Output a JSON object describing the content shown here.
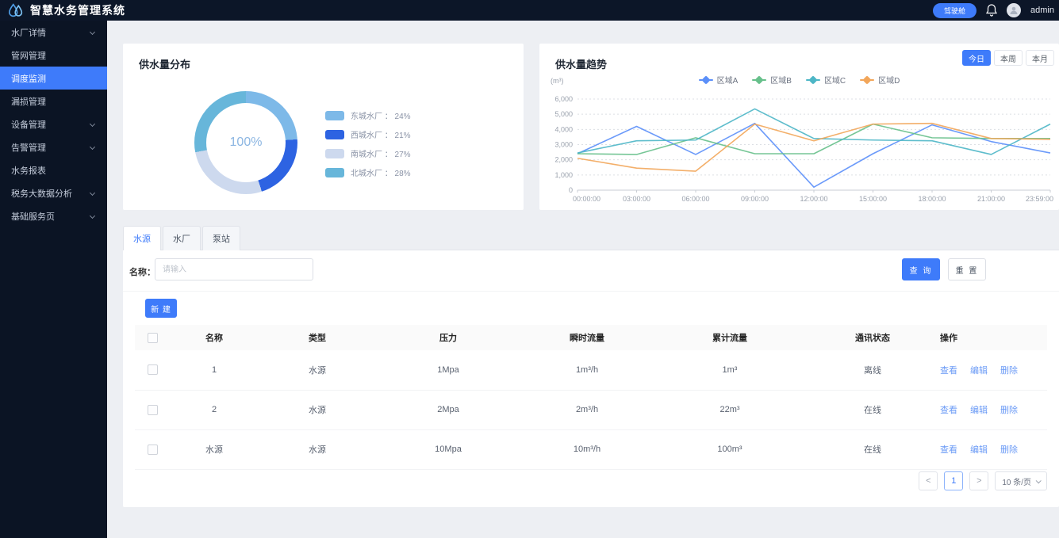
{
  "header": {
    "app_title": "智慧水务管理系统",
    "cockpit_button": "驾驶舱",
    "username": "admin"
  },
  "sidebar": {
    "items": [
      {
        "label": "水厂详情",
        "expandable": true,
        "active": false
      },
      {
        "label": "管网管理",
        "expandable": false,
        "active": false
      },
      {
        "label": "调度监测",
        "expandable": false,
        "active": true
      },
      {
        "label": "漏损管理",
        "expandable": false,
        "active": false
      },
      {
        "label": "设备管理",
        "expandable": true,
        "active": false
      },
      {
        "label": "告警管理",
        "expandable": true,
        "active": false
      },
      {
        "label": "水务报表",
        "expandable": false,
        "active": false
      },
      {
        "label": "税务大数据分析",
        "expandable": true,
        "active": false
      },
      {
        "label": "基础服务页",
        "expandable": true,
        "active": false
      }
    ]
  },
  "chart_data": [
    {
      "type": "pie",
      "title": "供水量分布",
      "center_label": "100%",
      "slices": [
        {
          "label": "东城水厂",
          "value": 24,
          "color": "#7db9e8"
        },
        {
          "label": "西城水厂",
          "value": 21,
          "color": "#2d63e2"
        },
        {
          "label": "南城水厂",
          "value": 27,
          "color": "#cdd9ee"
        },
        {
          "label": "北城水厂",
          "value": 28,
          "color": "#67b6da"
        }
      ],
      "legend_separator": " ： ",
      "legend_suffix": "%"
    },
    {
      "type": "line",
      "title": "供水量趋势",
      "ylabel": "(m³)",
      "ylim": [
        0,
        6000
      ],
      "y_ticks": [
        "6,000",
        "5,000",
        "4,000",
        "3,000",
        "2,000",
        "1,000",
        "0"
      ],
      "x": [
        "00:00:00",
        "03:00:00",
        "06:00:00",
        "09:00:00",
        "12:00:00",
        "15:00:00",
        "18:00:00",
        "21:00:00",
        "23:59:00"
      ],
      "series": [
        {
          "name": "区域A",
          "color": "#5b8ff9",
          "values": [
            2400,
            4200,
            2350,
            4400,
            200,
            2400,
            4300,
            3200,
            2450
          ]
        },
        {
          "name": "区域B",
          "color": "#67c08b",
          "values": [
            2400,
            2350,
            3450,
            2400,
            2400,
            4350,
            3450,
            3400,
            3400
          ]
        },
        {
          "name": "区域C",
          "color": "#4db6c6",
          "values": [
            2450,
            3250,
            3300,
            5350,
            3400,
            3300,
            3250,
            2350,
            4350
          ]
        },
        {
          "name": "区域D",
          "color": "#f2a65a",
          "values": [
            2100,
            1450,
            1250,
            4350,
            3250,
            4350,
            4400,
            3400,
            3350
          ]
        }
      ],
      "legend_position": "top",
      "grid": true,
      "period_buttons": [
        {
          "label": "今日",
          "active": true
        },
        {
          "label": "本周",
          "active": false
        },
        {
          "label": "本月",
          "active": false
        }
      ]
    }
  ],
  "panel": {
    "tabs": [
      {
        "label": "水源",
        "active": true
      },
      {
        "label": "水厂",
        "active": false
      },
      {
        "label": "泵站",
        "active": false
      }
    ],
    "filter": {
      "name_label": "名称：",
      "name_placeholder": "请输入",
      "search_button": "查 询",
      "reset_button": "重 置"
    },
    "create_button": "新 建",
    "table": {
      "columns": [
        "名称",
        "类型",
        "压力",
        "瞬时流量",
        "累计流量",
        "通讯状态",
        "操作"
      ],
      "rows": [
        {
          "name": "1",
          "type": "水源",
          "pressure": "1Mpa",
          "instant_flow": "1m³/h",
          "total_flow": "1m³",
          "status": "离线"
        },
        {
          "name": "2",
          "type": "水源",
          "pressure": "2Mpa",
          "instant_flow": "2m³/h",
          "total_flow": "22m³",
          "status": "在线"
        },
        {
          "name": "水源",
          "type": "水源",
          "pressure": "10Mpa",
          "instant_flow": "10m³/h",
          "total_flow": "100m³",
          "status": "在线"
        }
      ],
      "row_actions": [
        "查看",
        "编辑",
        "删除"
      ]
    },
    "pagination": {
      "prev": "<",
      "current_page": "1",
      "next": ">",
      "page_size": "10 条/页"
    }
  }
}
